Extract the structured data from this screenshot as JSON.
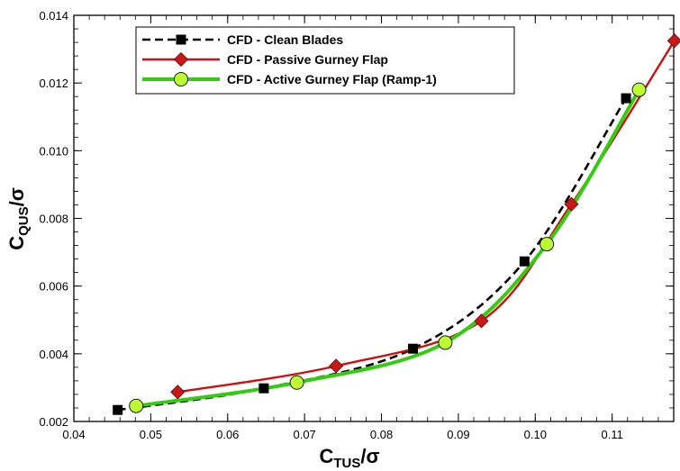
{
  "chart_data": {
    "type": "line",
    "xlabel": {
      "main": "C",
      "sub": "TUS",
      "tail": "/σ"
    },
    "ylabel": {
      "main": "C",
      "sub": "QUS",
      "tail": "/σ"
    },
    "xlim": [
      0.04,
      0.118
    ],
    "ylim": [
      0.002,
      0.014
    ],
    "x_ticks": [
      0.04,
      0.05,
      0.06,
      0.07,
      0.08,
      0.09,
      0.1,
      0.11
    ],
    "x_tick_labels": [
      "0.04",
      "0.05",
      "0.06",
      "0.07",
      "0.08",
      "0.09",
      "0.10",
      "0.11"
    ],
    "y_ticks": [
      0.002,
      0.004,
      0.006,
      0.008,
      0.01,
      0.012,
      0.014
    ],
    "y_tick_labels": [
      "0.002",
      "0.004",
      "0.006",
      "0.008",
      "0.010",
      "0.012",
      "0.014"
    ],
    "grid": false,
    "legend_position": "top-left",
    "series": [
      {
        "name": "CFD - Clean Blades",
        "color": "#000000",
        "line": "dashed",
        "marker": "square",
        "x": [
          0.0457,
          0.0647,
          0.0841,
          0.0986,
          0.1118
        ],
        "y": [
          0.00234,
          0.00298,
          0.00415,
          0.00673,
          0.01155
        ]
      },
      {
        "name": "CFD - Passive Gurney Flap",
        "color": "#d01010",
        "marker_color": "#c81818",
        "line": "solid",
        "marker": "diamond",
        "x": [
          0.0535,
          0.0741,
          0.093,
          0.1047,
          0.1181
        ],
        "y": [
          0.00287,
          0.00364,
          0.00497,
          0.00842,
          0.01325
        ]
      },
      {
        "name": "CFD - Active Gurney Flap (Ramp-1)",
        "color": "#33cc11",
        "marker_color": "#bbff33",
        "line": "solid",
        "marker": "circle",
        "x": [
          0.0481,
          0.069,
          0.0883,
          0.1015,
          0.1135
        ],
        "y": [
          0.00246,
          0.00315,
          0.00433,
          0.00724,
          0.0118
        ]
      }
    ]
  }
}
